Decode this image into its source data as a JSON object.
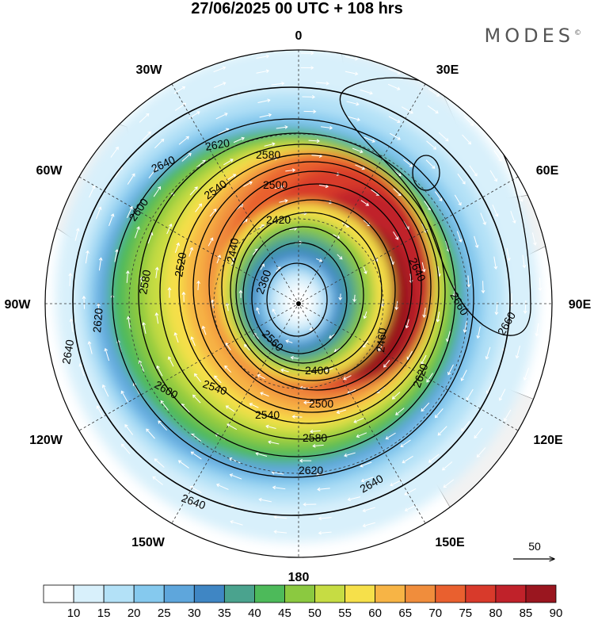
{
  "title": "27/06/2025  00 UTC  + 108 hrs",
  "brand": "MODES",
  "brand_mark": "©",
  "longitude_labels": {
    "top": "0",
    "bottom": "180",
    "left": "90W",
    "right": "90E",
    "w30": "30W",
    "e30": "30E",
    "w60": "60W",
    "e60": "60E",
    "w120": "120W",
    "e120": "120E",
    "w150": "150W",
    "e150": "150E"
  },
  "height_contours": {
    "c2360": "2360",
    "c2400": "2400",
    "c2420": "2420",
    "c2440": "2440",
    "c2460": "2460",
    "c2500": "2500",
    "c2520": "2520",
    "c2540": "2540",
    "c2560": "2560",
    "c2580": "2580",
    "c2600": "2600",
    "c2620": "2620",
    "c2640": "2640",
    "c2660": "2660"
  },
  "vector_reference": {
    "label": "50"
  },
  "colorbar": {
    "ticks": [
      "10",
      "15",
      "20",
      "25",
      "30",
      "35",
      "40",
      "45",
      "50",
      "55",
      "60",
      "65",
      "70",
      "75",
      "80",
      "85",
      "90"
    ],
    "colors": [
      "#ffffff",
      "#d8f0fb",
      "#b3e1f7",
      "#85c9ee",
      "#5ea6dc",
      "#3f86c4",
      "#4aa38e",
      "#4dba5a",
      "#8bc940",
      "#c6dc43",
      "#f6e04a",
      "#f7b445",
      "#f08d3c",
      "#e9602f",
      "#d83a2b",
      "#c0222a",
      "#9a161f"
    ]
  }
}
